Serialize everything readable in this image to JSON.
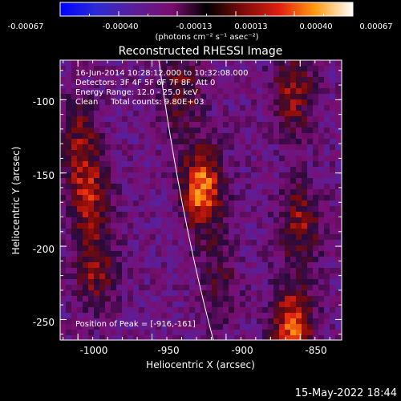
{
  "colorbar": {
    "tick_labels": [
      "-0.00067",
      "-0.00040",
      "-0.00013",
      "0.00013",
      "0.00040",
      "0.00067"
    ],
    "units": "(photons cm⁻² s⁻¹ asec⁻²)",
    "range": [
      -0.00067,
      0.00067
    ]
  },
  "plot": {
    "title": "Reconstructed RHESSI Image",
    "info_lines": [
      "16-Jun-2014 10:28:12.000 to 10:32:08.000",
      "Detectors: 3F 4F 5F 6F 7F 8F, Att 0",
      "Energy Range: 12.0 - 25.0 keV",
      "Clean     Total counts: 9.80E+03"
    ],
    "peak_label": "Position of Peak = [-916,-161]",
    "xlabel": "Heliocentric X (arcsec)",
    "ylabel": "Heliocentric Y (arcsec)",
    "x_ticks": [
      "-1000",
      "-950",
      "-900",
      "-850"
    ],
    "y_ticks": [
      "-100",
      "-150",
      "-200",
      "-250"
    ]
  },
  "footer": {
    "timestamp": "15-May-2022 18:44"
  },
  "chart_data": {
    "type": "heatmap",
    "title": "Reconstructed RHESSI Image",
    "xlabel": "Heliocentric X (arcsec)",
    "ylabel": "Heliocentric Y (arcsec)",
    "xlim": [
      -1012,
      -822
    ],
    "ylim": [
      -264,
      -73
    ],
    "x_ticks": [
      -1000,
      -950,
      -900,
      -850
    ],
    "y_ticks": [
      -100,
      -150,
      -200,
      -250
    ],
    "peak": [
      -916,
      -161
    ],
    "colorbar_range": [
      -0.00067,
      0.00067
    ],
    "sources": [
      {
        "x": -916,
        "y": -161,
        "intensity": 0.00067
      },
      {
        "x": -993,
        "y": -165,
        "intensity": 0.00045
      },
      {
        "x": -988,
        "y": -215,
        "intensity": 0.0004
      },
      {
        "x": -1000,
        "y": -125,
        "intensity": 0.00032
      },
      {
        "x": -855,
        "y": -95,
        "intensity": 0.0004
      },
      {
        "x": -850,
        "y": -185,
        "intensity": 0.0004
      },
      {
        "x": -855,
        "y": -255,
        "intensity": 0.0006
      },
      {
        "x": -930,
        "y": -95,
        "intensity": 0.00035
      },
      {
        "x": -905,
        "y": -225,
        "intensity": 0.00025
      }
    ]
  }
}
